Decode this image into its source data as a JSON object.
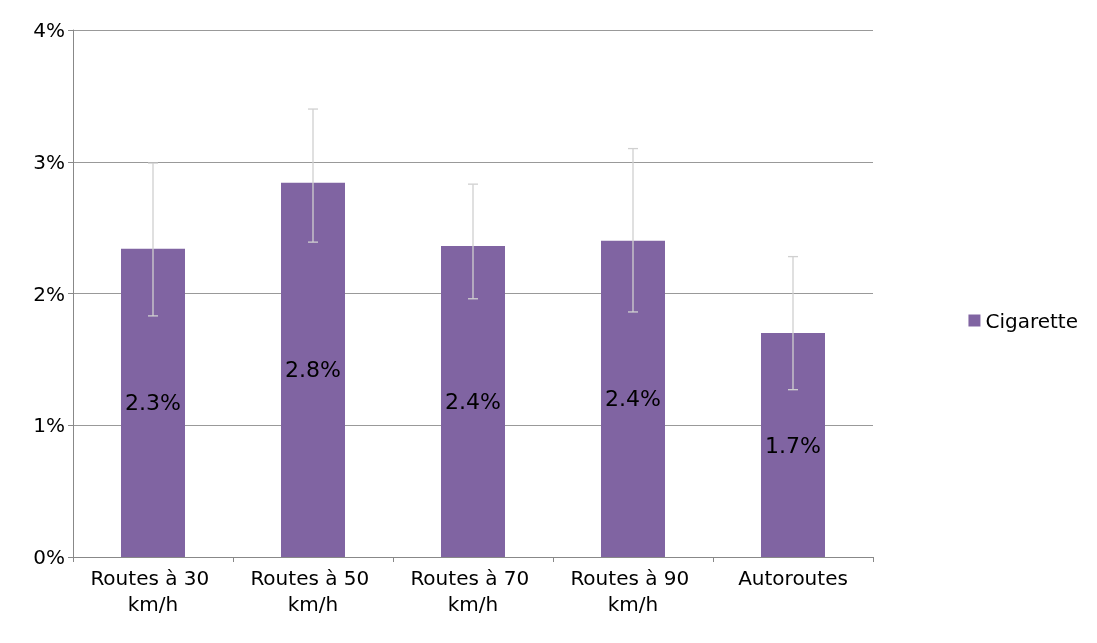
{
  "chart_data": {
    "type": "bar",
    "categories": [
      "Routes à 30 km/h",
      "Routes à 50 km/h",
      "Routes à 70 km/h",
      "Routes à 90 km/h",
      "Autoroutes"
    ],
    "series": [
      {
        "name": "Cigarette",
        "color": "#8064a2",
        "values": [
          2.34,
          2.84,
          2.36,
          2.4,
          1.7
        ],
        "value_labels": [
          "2.3%",
          "2.8%",
          "2.4%",
          "2.4%",
          "1.7%"
        ],
        "errors": [
          [
            1.83,
            2.99
          ],
          [
            2.39,
            3.4
          ],
          [
            1.96,
            2.83
          ],
          [
            1.86,
            3.1
          ],
          [
            1.27,
            2.28
          ]
        ]
      }
    ],
    "ylim": [
      0,
      4
    ],
    "yticks": [
      {
        "value": 0,
        "label": "0%"
      },
      {
        "value": 1,
        "label": "1%"
      },
      {
        "value": 2,
        "label": "2%"
      },
      {
        "value": 3,
        "label": "3%"
      },
      {
        "value": 4,
        "label": "4%"
      }
    ],
    "grid": "y",
    "legend": "right"
  }
}
